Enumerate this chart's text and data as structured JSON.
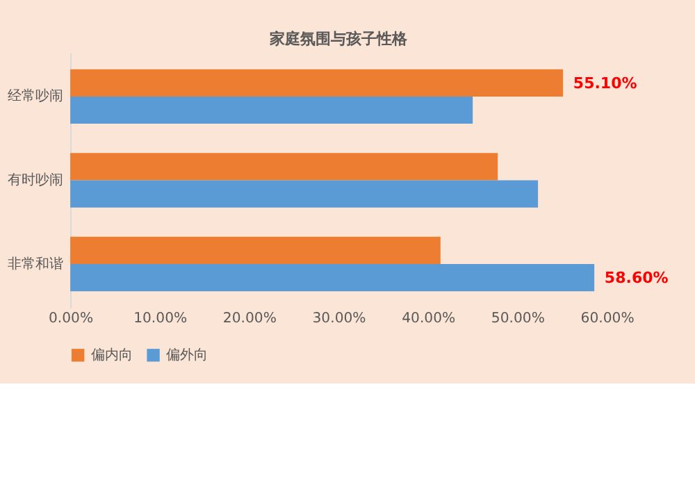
{
  "chart_data": {
    "type": "bar",
    "orientation": "horizontal",
    "title": "家庭氛围与孩子性格",
    "categories": [
      "经常吵闹",
      "有时吵闹",
      "非常和谐"
    ],
    "series": [
      {
        "name": "偏内向",
        "color": "#ed7d31",
        "values": [
          55.1,
          47.8,
          41.4
        ],
        "value_labels": [
          "55.10%",
          null,
          null
        ]
      },
      {
        "name": "偏外向",
        "color": "#5b9bd5",
        "values": [
          45.0,
          52.3,
          58.6
        ],
        "value_labels": [
          null,
          null,
          "58.60%"
        ]
      }
    ],
    "xlim": [
      0,
      60
    ],
    "xticks": [
      {
        "value": 0,
        "label": "0.00%"
      },
      {
        "value": 10,
        "label": "10.00%"
      },
      {
        "value": 20,
        "label": "20.00%"
      },
      {
        "value": 30,
        "label": "30.00%"
      },
      {
        "value": 40,
        "label": "40.00%"
      },
      {
        "value": 50,
        "label": "50.00%"
      },
      {
        "value": 60,
        "label": "60.00%"
      }
    ],
    "grid": false,
    "legend": "bottom"
  }
}
